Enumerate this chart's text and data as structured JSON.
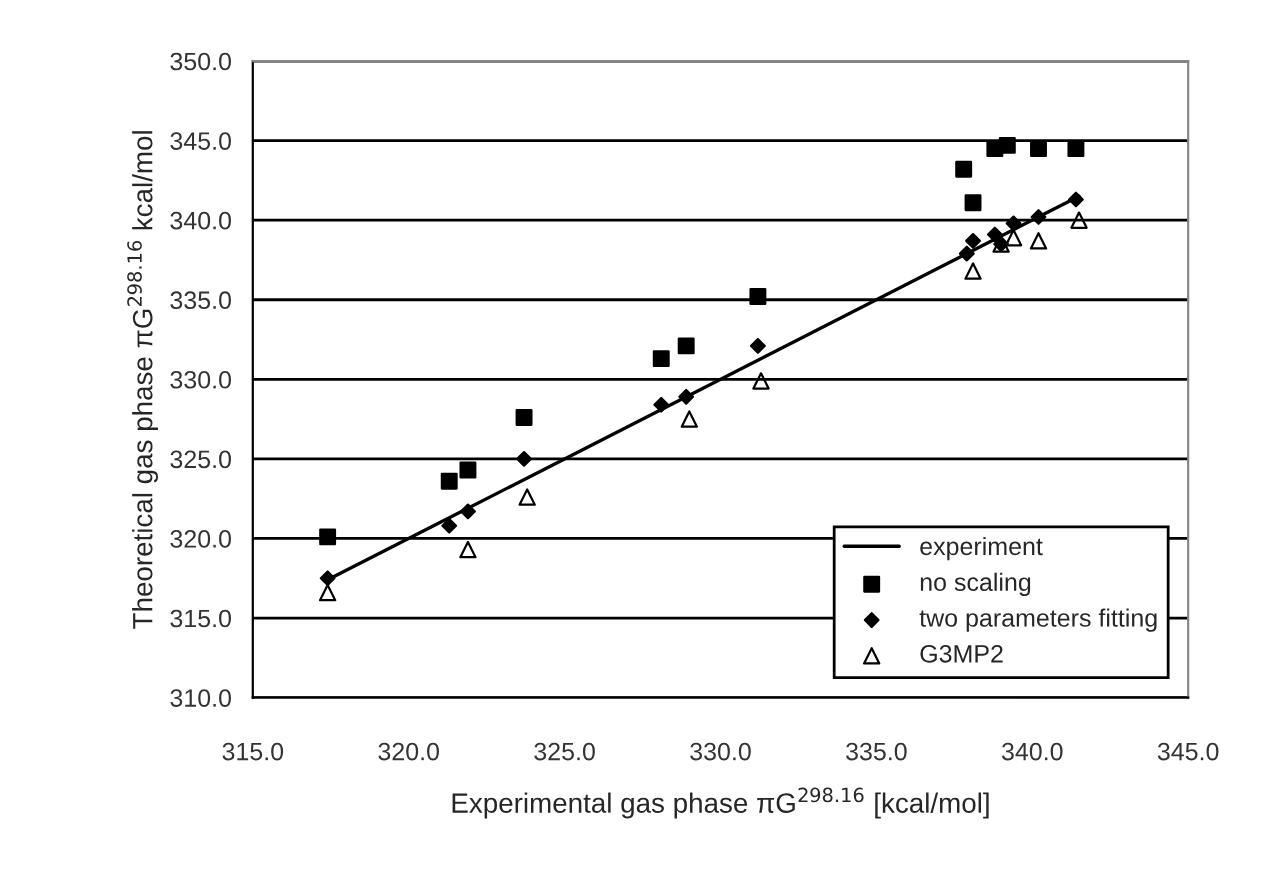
{
  "chart_data": {
    "type": "scatter",
    "xlabel": "Experimental gas phase πG$^{298.16}$ [kcal/mol]",
    "ylabel": "Theoretical gas phase πG$^{298.16}$ kcal/mol",
    "xlim": [
      315,
      345
    ],
    "ylim": [
      310,
      350
    ],
    "xticks": [
      {
        "value": 315,
        "label": "315.0"
      },
      {
        "value": 320,
        "label": "320.0"
      },
      {
        "value": 325,
        "label": "325.0"
      },
      {
        "value": 330,
        "label": "330.0"
      },
      {
        "value": 335,
        "label": "335.0"
      },
      {
        "value": 340,
        "label": "340.0"
      },
      {
        "value": 345,
        "label": "345.0"
      }
    ],
    "yticks": [
      {
        "value": 310,
        "label": "310.0"
      },
      {
        "value": 315,
        "label": "315.0"
      },
      {
        "value": 320,
        "label": "320.0"
      },
      {
        "value": 325,
        "label": "325.0"
      },
      {
        "value": 330,
        "label": "330.0"
      },
      {
        "value": 335,
        "label": "335.0"
      },
      {
        "value": 340,
        "label": "340.0"
      },
      {
        "value": 345,
        "label": "345.0"
      },
      {
        "value": 350,
        "label": "350.0"
      }
    ],
    "grid": "y",
    "legend": "bottom right",
    "series": [
      {
        "name": "experiment",
        "type": "line",
        "color": "#000000",
        "marker": "none",
        "line_style": "solid",
        "x": [
          317.4,
          341.5
        ],
        "values": [
          317.4,
          341.5
        ]
      },
      {
        "name": "no scaling",
        "color": "#000000",
        "marker": "square",
        "x": [
          317.4,
          321.3,
          321.9,
          323.7,
          328.1,
          328.9,
          331.2,
          337.8,
          338.1,
          338.8,
          339.2,
          340.2,
          341.4
        ],
        "values": [
          320.1,
          323.6,
          324.3,
          327.6,
          331.3,
          332.1,
          335.2,
          343.2,
          341.1,
          344.5,
          344.7,
          344.5,
          344.5
        ]
      },
      {
        "name": "two parameters fitting",
        "color": "#000000",
        "marker": "diamond",
        "x": [
          317.4,
          321.3,
          321.9,
          323.7,
          328.1,
          328.9,
          331.2,
          337.9,
          338.1,
          338.8,
          339.0,
          339.4,
          340.2,
          341.4
        ],
        "values": [
          317.5,
          320.8,
          321.7,
          325.0,
          328.4,
          328.9,
          332.1,
          337.9,
          338.7,
          339.1,
          338.5,
          339.8,
          340.2,
          341.3
        ]
      },
      {
        "name": "G3MP2",
        "color": "#000000",
        "marker": "triangle",
        "x": [
          317.4,
          321.9,
          323.8,
          329.0,
          331.3,
          338.1,
          339.0,
          339.4,
          340.2,
          341.5
        ],
        "values": [
          316.6,
          319.3,
          322.6,
          327.5,
          329.9,
          336.8,
          338.5,
          338.9,
          338.7,
          340.0
        ]
      }
    ]
  }
}
